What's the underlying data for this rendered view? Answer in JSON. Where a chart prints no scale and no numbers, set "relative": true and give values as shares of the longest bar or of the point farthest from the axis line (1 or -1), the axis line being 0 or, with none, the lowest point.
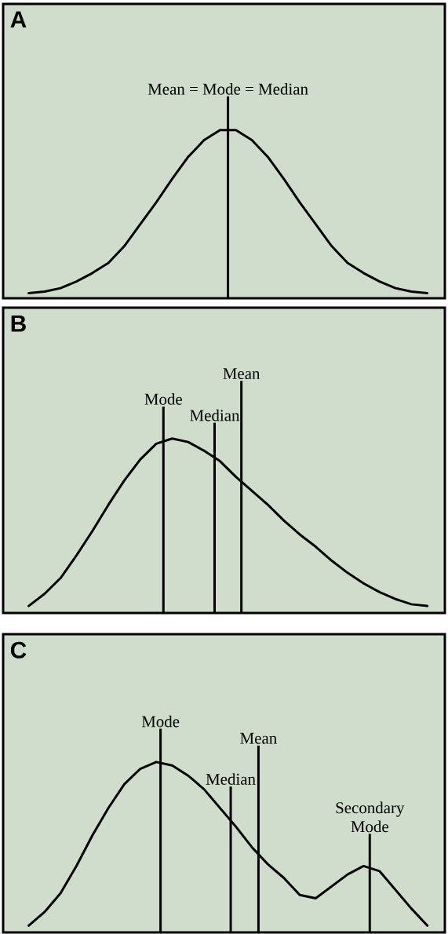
{
  "chart_data": [
    {
      "type": "line",
      "title": "A",
      "relative": true,
      "color": "#000000",
      "categories": [
        null,
        null,
        null,
        null,
        null,
        null,
        null,
        null,
        null,
        null,
        null,
        null,
        null,
        null,
        null,
        null,
        null,
        null,
        null,
        null,
        null,
        null,
        null,
        null,
        null,
        null
      ],
      "values": [
        0.03,
        0.04,
        0.06,
        0.1,
        0.15,
        0.21,
        0.31,
        0.44,
        0.57,
        0.71,
        0.84,
        0.94,
        1,
        1,
        0.94,
        0.84,
        0.71,
        0.57,
        0.44,
        0.31,
        0.21,
        0.15,
        0.1,
        0.06,
        0.04,
        0.03
      ],
      "annotations": [
        "Mean = Mode = Median"
      ]
    },
    {
      "type": "line",
      "title": "B",
      "relative": true,
      "color": "#000000",
      "categories": [
        null,
        null,
        null,
        null,
        null,
        null,
        null,
        null,
        null,
        null,
        null,
        null,
        null,
        null,
        null,
        null,
        null,
        null,
        null,
        null,
        null,
        null,
        null,
        null,
        null,
        null
      ],
      "values": [
        0.04,
        0.11,
        0.2,
        0.33,
        0.47,
        0.62,
        0.76,
        0.88,
        0.97,
        1,
        0.98,
        0.93,
        0.87,
        0.78,
        0.7,
        0.62,
        0.53,
        0.45,
        0.38,
        0.3,
        0.23,
        0.17,
        0.12,
        0.08,
        0.05,
        0.04
      ],
      "annotations": [
        "Mode",
        "Median",
        "Mean"
      ]
    },
    {
      "type": "line",
      "title": "C",
      "relative": true,
      "color": "#000000",
      "categories": [
        null,
        null,
        null,
        null,
        null,
        null,
        null,
        null,
        null,
        null,
        null,
        null,
        null,
        null,
        null,
        null,
        null,
        null,
        null,
        null,
        null,
        null,
        null,
        null,
        null,
        null
      ],
      "values": [
        0.04,
        0.12,
        0.23,
        0.39,
        0.57,
        0.73,
        0.87,
        0.96,
        1,
        0.98,
        0.92,
        0.84,
        0.73,
        0.62,
        0.5,
        0.4,
        0.32,
        0.22,
        0.2,
        0.27,
        0.34,
        0.39,
        0.36,
        0.25,
        0.14,
        0.04
      ],
      "annotations": [
        "Mode",
        "Median",
        "Mean",
        "Secondary Mode"
      ]
    }
  ]
}
